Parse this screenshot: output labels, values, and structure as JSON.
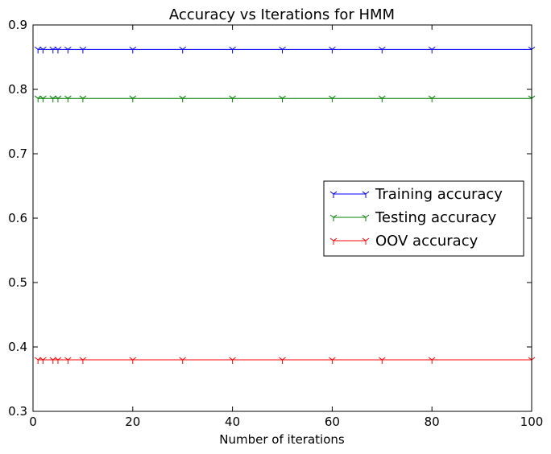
{
  "chart_data": {
    "type": "line",
    "title": "Accuracy vs Iterations for HMM",
    "xlabel": "Number of iterations",
    "ylabel": "",
    "xlim": [
      0,
      100
    ],
    "ylim": [
      0.3,
      0.9
    ],
    "xticks": [
      0,
      20,
      40,
      60,
      80,
      100
    ],
    "yticks": [
      0.3,
      0.4,
      0.5,
      0.6,
      0.7,
      0.8,
      0.9
    ],
    "grid": false,
    "legend_position": "center-right",
    "x": [
      1,
      2,
      4,
      5,
      7,
      10,
      20,
      30,
      40,
      50,
      60,
      70,
      80,
      100
    ],
    "series": [
      {
        "name": "Training accuracy",
        "color": "#0000ff",
        "marker": "tri-down",
        "values": [
          0.862,
          0.862,
          0.862,
          0.862,
          0.862,
          0.862,
          0.862,
          0.862,
          0.862,
          0.862,
          0.862,
          0.862,
          0.862,
          0.862
        ]
      },
      {
        "name": "Testing accuracy",
        "color": "#008000",
        "marker": "tri-down",
        "values": [
          0.786,
          0.786,
          0.786,
          0.786,
          0.786,
          0.786,
          0.786,
          0.786,
          0.786,
          0.786,
          0.786,
          0.786,
          0.786,
          0.786
        ]
      },
      {
        "name": "OOV accuracy",
        "color": "#ff0000",
        "marker": "tri-down",
        "values": [
          0.38,
          0.38,
          0.38,
          0.38,
          0.38,
          0.38,
          0.38,
          0.38,
          0.38,
          0.38,
          0.38,
          0.38,
          0.38,
          0.38
        ]
      }
    ]
  }
}
